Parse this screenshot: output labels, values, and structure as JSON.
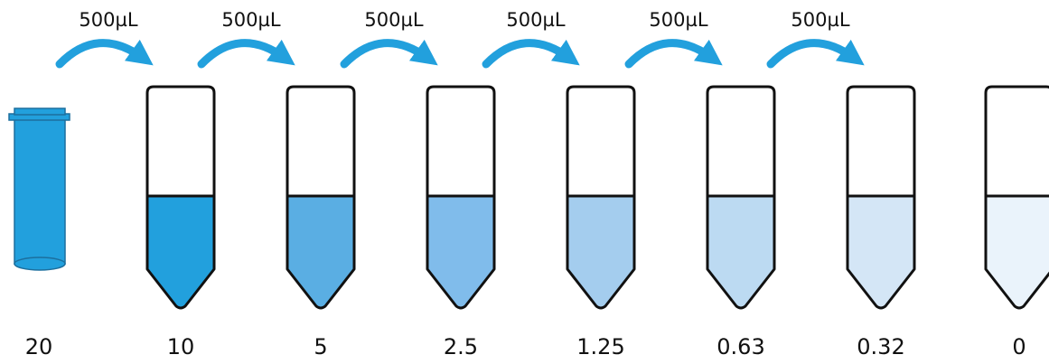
{
  "diagram": {
    "stock_tube": {
      "label": "20",
      "color": "#22a0dd"
    },
    "arrow_color": "#22a0dd",
    "transfer_labels": [
      "500µL",
      "500µL",
      "500µL",
      "500µL",
      "500µL",
      "500µL"
    ],
    "tubes": [
      {
        "label": "10",
        "fill": "#22a0dd"
      },
      {
        "label": "5",
        "fill": "#5aaee3"
      },
      {
        "label": "2.5",
        "fill": "#80bceb"
      },
      {
        "label": "1.25",
        "fill": "#a4cdee"
      },
      {
        "label": "0.63",
        "fill": "#bcdaf2"
      },
      {
        "label": "0.32",
        "fill": "#d4e6f6"
      },
      {
        "label": "0",
        "fill": "#eaf3fb"
      }
    ]
  }
}
